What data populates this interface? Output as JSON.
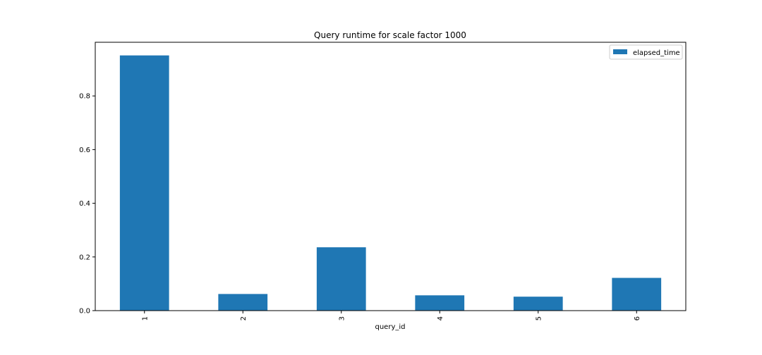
{
  "chart_data": {
    "type": "bar",
    "title": "Query runtime for scale factor 1000",
    "xlabel": "query_id",
    "ylabel": "",
    "categories": [
      "1",
      "2",
      "3",
      "4",
      "5",
      "6"
    ],
    "series": [
      {
        "name": "elapsed_time",
        "color": "#1f77b4",
        "values": [
          0.951,
          0.062,
          0.236,
          0.057,
          0.052,
          0.122
        ]
      }
    ],
    "ylim": [
      0,
      1.0
    ],
    "yticks": [
      "0.0",
      "0.2",
      "0.4",
      "0.6",
      "0.8"
    ],
    "grid": false,
    "legend_position": "top-right",
    "x_tick_rotation": "vertical"
  }
}
